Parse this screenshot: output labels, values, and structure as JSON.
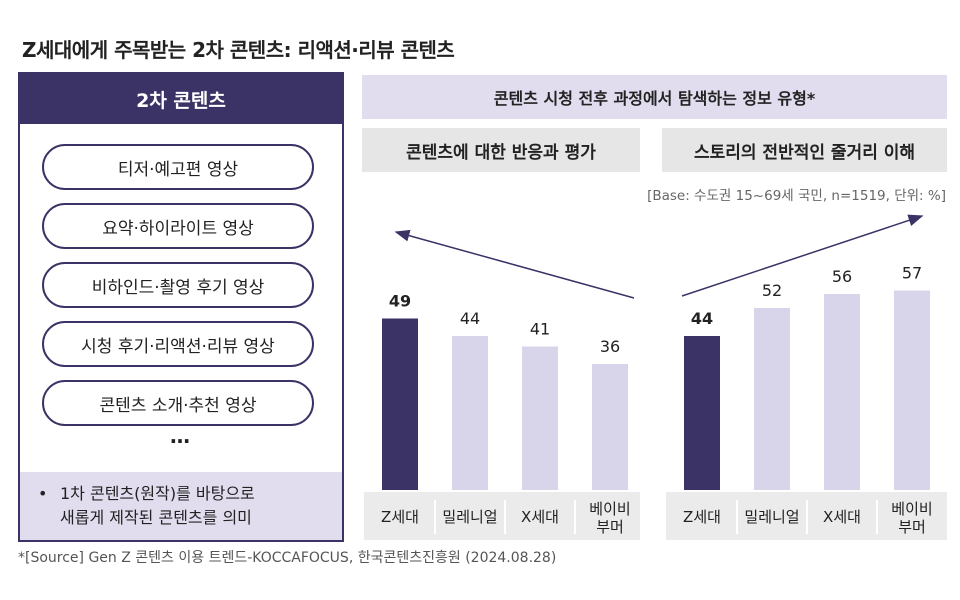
{
  "title": "Z세대에게 주목받는 2차 콘텐츠: 리액션·리뷰 콘텐츠",
  "left_panel": {
    "header": "2차 콘텐츠",
    "items": [
      "티저·예고편 영상",
      "요약·하이라이트 영상",
      "비하인드·촬영 후기 영상",
      "시청 후기·리액션·리뷰 영상",
      "콘텐츠 소개·추천 영상"
    ],
    "ellipsis": "…",
    "note_bullet": "•",
    "note_line1": "1차 콘텐츠(원작)를 바탕으로",
    "note_line2": "새롭게 제작된 콘텐츠를 의미"
  },
  "top_banner": "콘텐츠 시청 전후 과정에서 탐색하는 정보 유형*",
  "base_note": "[Base: 수도권 15~69세 국민, n=1519, 단위: %]",
  "source": "*[Source] Gen Z 콘텐츠 이용 트렌드-KOCCAFOCUS, 한국콘텐츠진흥원 (2024.08.28)",
  "colors": {
    "highlight": "#3b3366",
    "normal": "#d8d5ea",
    "banner": "#e1ddef"
  },
  "chart_data": [
    {
      "type": "bar",
      "title": "콘텐츠에 대한 반응과 평가",
      "categories": [
        "Z세대",
        "밀레니얼",
        "X세대",
        "베이비 부머"
      ],
      "values": [
        49,
        44,
        41,
        36
      ],
      "highlight_index": 0,
      "trend_arrow": "decreasing"
    },
    {
      "type": "bar",
      "title": "스토리의 전반적인 줄거리 이해",
      "categories": [
        "Z세대",
        "밀레니얼",
        "X세대",
        "베이비 부머"
      ],
      "values": [
        44,
        52,
        56,
        57
      ],
      "highlight_index": 0,
      "trend_arrow": "increasing"
    }
  ]
}
